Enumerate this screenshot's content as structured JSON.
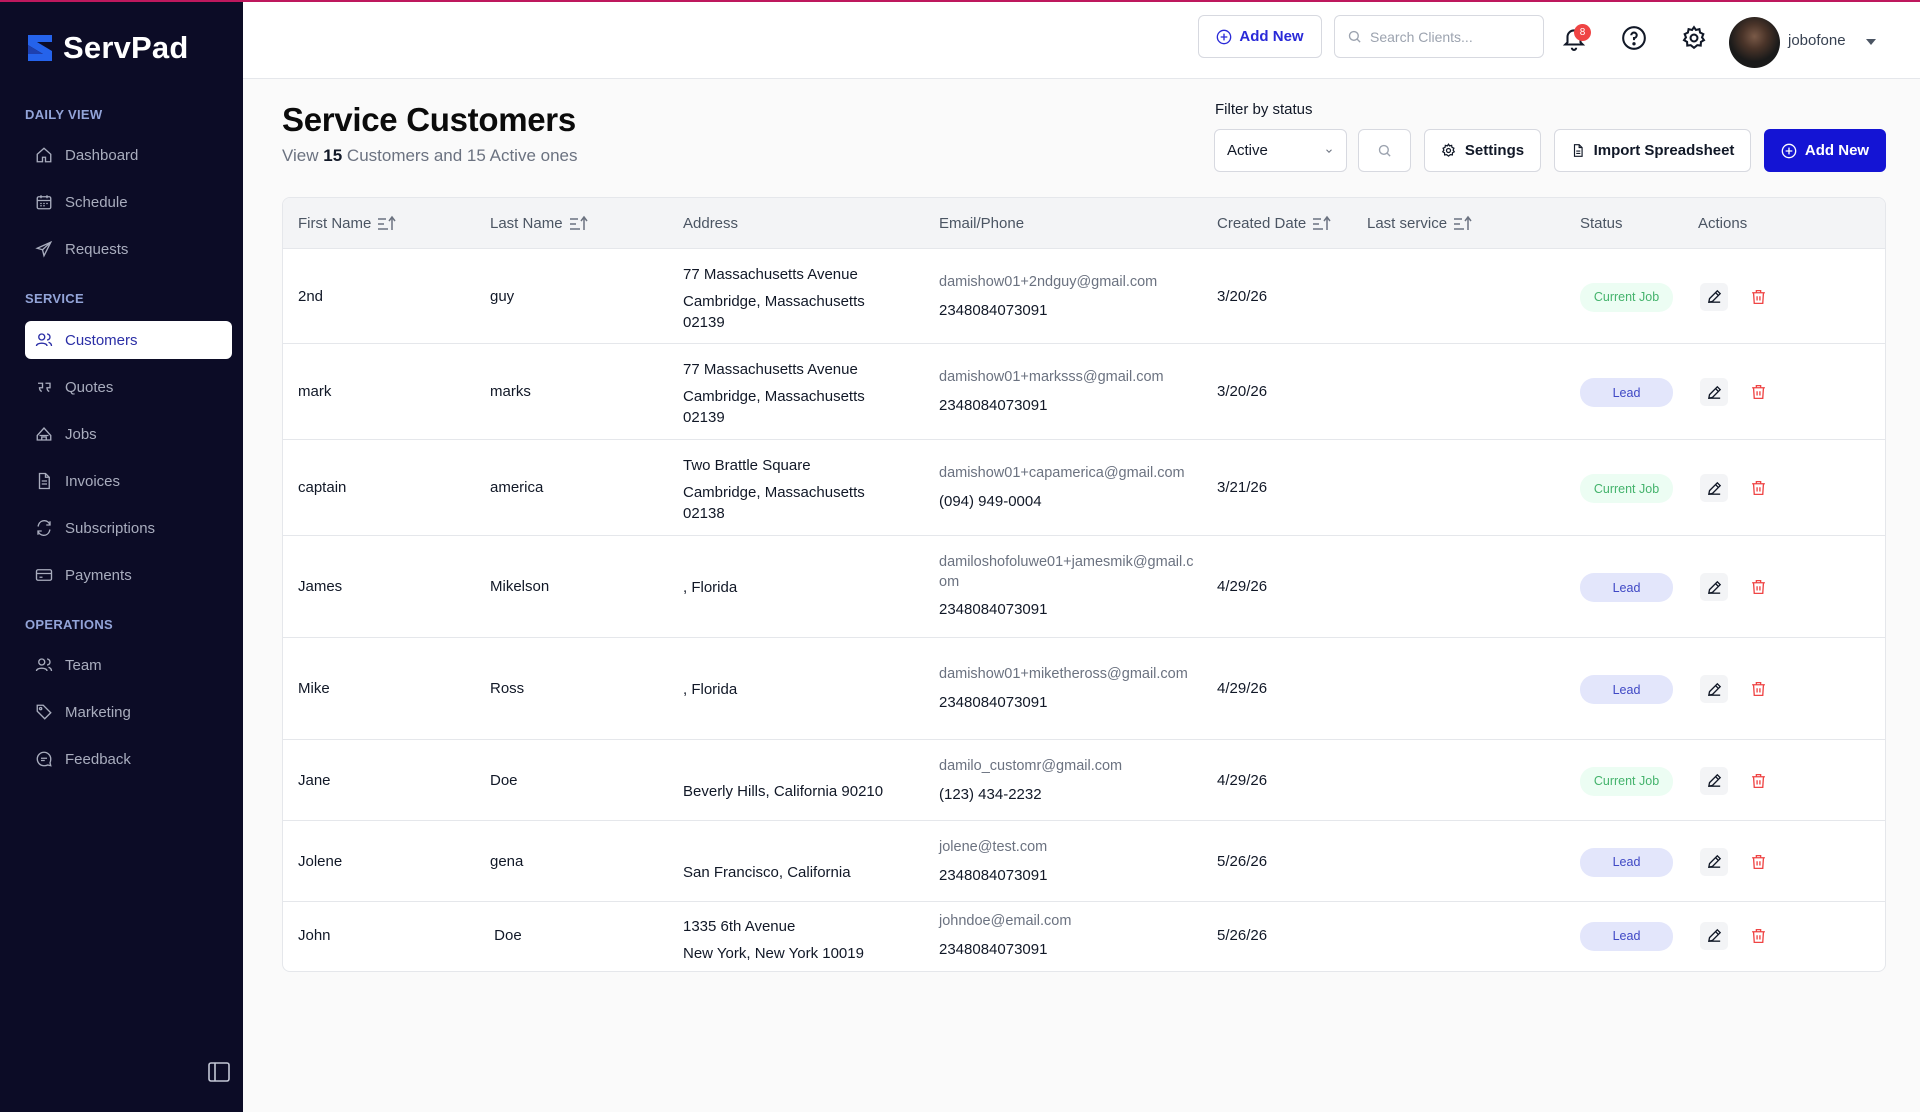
{
  "app": {
    "name": "ServPad"
  },
  "sidebar": {
    "sections": [
      {
        "label": "DAILY VIEW",
        "items": [
          {
            "label": "Dashboard",
            "icon": "home-icon"
          },
          {
            "label": "Schedule",
            "icon": "calendar-icon"
          },
          {
            "label": "Requests",
            "icon": "send-icon"
          }
        ]
      },
      {
        "label": "SERVICE",
        "items": [
          {
            "label": "Customers",
            "icon": "users-icon",
            "active": true
          },
          {
            "label": "Quotes",
            "icon": "quote-icon"
          },
          {
            "label": "Jobs",
            "icon": "briefcase-icon"
          },
          {
            "label": "Invoices",
            "icon": "document-icon"
          },
          {
            "label": "Subscriptions",
            "icon": "refresh-icon"
          },
          {
            "label": "Payments",
            "icon": "card-icon"
          }
        ]
      },
      {
        "label": "OPERATIONS",
        "items": [
          {
            "label": "Team",
            "icon": "users-icon"
          },
          {
            "label": "Marketing",
            "icon": "tag-icon"
          },
          {
            "label": "Feedback",
            "icon": "chat-icon"
          }
        ]
      }
    ]
  },
  "topbar": {
    "add_new_label": "Add New",
    "search_placeholder": "Search Clients...",
    "notification_count": "8",
    "username": "jobofone"
  },
  "header": {
    "title": "Service Customers",
    "subtitle_prefix": "View ",
    "customer_count": "15",
    "subtitle_middle": " Customers and 15 Active ones",
    "filter_label": "Filter by status",
    "filter_value": "Active",
    "settings_label": "Settings",
    "import_label": "Import Spreadsheet",
    "add_new_label": "Add New"
  },
  "table": {
    "columns": [
      "First Name",
      "Last Name",
      "Address",
      "Email/Phone",
      "Created Date",
      "Last service",
      "Status",
      "Actions"
    ],
    "rows": [
      {
        "first": "2nd",
        "last": "guy",
        "address": [
          "77 Massachusetts Avenue",
          "Cambridge, Massachusetts",
          "02139"
        ],
        "email": "damishow01+2ndguy@gmail.com",
        "phone": "2348084073091",
        "created": "3/20/26",
        "last_service": "",
        "status": "Current Job"
      },
      {
        "first": "mark",
        "last": "marks",
        "address": [
          "77 Massachusetts Avenue",
          "Cambridge, Massachusetts",
          "02139"
        ],
        "email": "damishow01+marksss@gmail.com",
        "phone": "2348084073091",
        "created": "3/20/26",
        "last_service": "",
        "status": "Lead"
      },
      {
        "first": "captain",
        "last": "america",
        "address": [
          "Two Brattle Square",
          "Cambridge, Massachusetts",
          "02138"
        ],
        "email": "damishow01+capamerica@gmail.com",
        "phone": "(094) 949-0004",
        "created": "3/21/26",
        "last_service": "",
        "status": "Current Job"
      },
      {
        "first": "James",
        "last": "Mikelson",
        "address": [
          ", Florida"
        ],
        "email": "damiloshofoluwe01+jamesmik@gmail.com",
        "phone": "2348084073091",
        "created": "4/29/26",
        "last_service": "",
        "status": "Lead"
      },
      {
        "first": "Mike",
        "last": "Ross",
        "address": [
          ", Florida"
        ],
        "email": "damishow01+miketheross@gmail.com",
        "phone": "2348084073091",
        "created": "4/29/26",
        "last_service": "",
        "status": "Lead"
      },
      {
        "first": "Jane",
        "last": "Doe",
        "address": [
          "Beverly Hills, California 90210"
        ],
        "email": "damilo_customr@gmail.com",
        "phone": "(123) 434-2232",
        "created": "4/29/26",
        "last_service": "",
        "status": "Current Job"
      },
      {
        "first": "Jolene",
        "last": "gena",
        "address": [
          "San Francisco, California"
        ],
        "email": "jolene@test.com",
        "phone": "2348084073091",
        "created": "5/26/26",
        "last_service": "",
        "status": "Lead"
      },
      {
        "first": "John",
        "last": " Doe",
        "address": [
          "1335 6th Avenue",
          "New York, New York 10019"
        ],
        "email": "johndoe@email.com",
        "phone": "2348084073091",
        "created": "5/26/26",
        "last_service": "",
        "status": "Lead"
      }
    ]
  },
  "colors": {
    "sidebar_bg": "#0c0c26",
    "primary": "#1414d4",
    "brand_logo": "#2563eb",
    "lead_bg": "#e3e6fb",
    "current_job_bg": "#ecfdf3",
    "delete_red": "#ef4444"
  }
}
